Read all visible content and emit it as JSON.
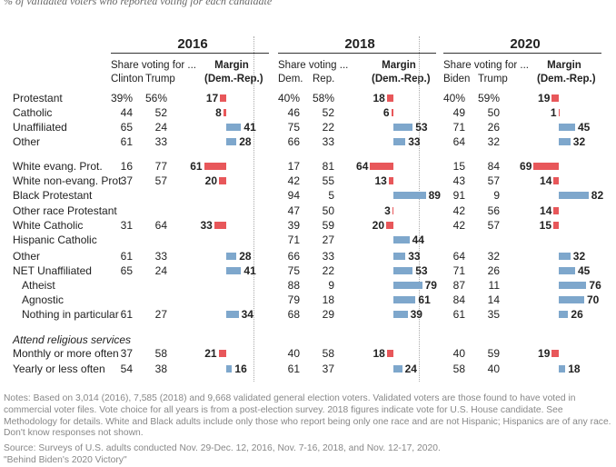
{
  "subtitle": "% of validated voters who reported voting for each candidate",
  "panels": [
    {
      "year": "2016",
      "share_label": "Share voting for ...",
      "dem_label": "Clinton",
      "rep_label": "Trump",
      "margin_label": "Margin",
      "margin_sub": "(Dem.-Rep.)"
    },
    {
      "year": "2018",
      "share_label": "Share voting ...",
      "dem_label": "Dem.",
      "rep_label": "Rep.",
      "margin_label": "Margin",
      "margin_sub": "(Dem.-Rep.)"
    },
    {
      "year": "2020",
      "share_label": "Share voting for ...",
      "dem_label": "Biden",
      "rep_label": "Trump",
      "margin_label": "Margin",
      "margin_sub": "(Dem.-Rep.)"
    }
  ],
  "section_label": "Attend religious services",
  "colors": {
    "dem": "#7ea7cc",
    "rep": "#e8575a"
  },
  "chart_data": {
    "type": "bar",
    "categories": [
      "Protestant",
      "Catholic",
      "Unaffiliated",
      "Other",
      "White evang. Prot.",
      "White non-evang. Prot.",
      "Black Protestant",
      "Other race Protestant",
      "White Catholic",
      "Hispanic Catholic",
      "Other",
      "NET Unaffiliated",
      "Atheist",
      "Agnostic",
      "Nothing in particular",
      "Monthly or more often",
      "Yearly or less often"
    ],
    "series": [
      {
        "name": "2016",
        "dem": [
          "39%",
          "44",
          "65",
          "61",
          "16",
          "37",
          "",
          "",
          "31",
          "",
          "61",
          "65",
          "",
          "",
          "61",
          "37",
          "54"
        ],
        "rep": [
          "56%",
          "52",
          "24",
          "33",
          "77",
          "57",
          "",
          "",
          "64",
          "",
          "33",
          "24",
          "",
          "",
          "27",
          "58",
          "38"
        ],
        "margin": [
          -17,
          -8,
          41,
          28,
          -61,
          -20,
          null,
          null,
          -33,
          null,
          28,
          41,
          null,
          null,
          34,
          -21,
          16
        ]
      },
      {
        "name": "2018",
        "dem": [
          "40%",
          "46",
          "75",
          "66",
          "17",
          "42",
          "94",
          "47",
          "39",
          "71",
          "66",
          "75",
          "88",
          "79",
          "68",
          "40",
          "61"
        ],
        "rep": [
          "58%",
          "52",
          "22",
          "33",
          "81",
          "55",
          "5",
          "50",
          "59",
          "27",
          "33",
          "22",
          "9",
          "18",
          "29",
          "58",
          "37"
        ],
        "margin": [
          -18,
          -6,
          53,
          33,
          -64,
          -13,
          89,
          -3,
          -20,
          44,
          33,
          53,
          79,
          61,
          39,
          -18,
          24
        ]
      },
      {
        "name": "2020",
        "dem": [
          "40%",
          "49",
          "71",
          "64",
          "15",
          "43",
          "91",
          "42",
          "42",
          "",
          "64",
          "71",
          "87",
          "84",
          "61",
          "40",
          "58"
        ],
        "rep": [
          "59%",
          "50",
          "26",
          "32",
          "84",
          "57",
          "9",
          "56",
          "57",
          "",
          "32",
          "26",
          "11",
          "14",
          "35",
          "59",
          "40"
        ],
        "margin": [
          -19,
          -1,
          45,
          32,
          -69,
          -14,
          82,
          -14,
          -15,
          null,
          32,
          45,
          76,
          70,
          26,
          -19,
          18
        ]
      }
    ]
  },
  "notes": [
    "Notes: Based on 3,014 (2016), 7,585 (2018) and 9,668 validated general election voters. Validated voters are those found to have voted in commercial voter files. Vote choice for all years is from a post-election survey. 2018 figures indicate vote for U.S. House candidate. See Methodology for details. White and Black adults include only those who report being only one race and are not Hispanic; Hispanics are of any race. Don't know responses not shown.",
    "Source: Surveys of U.S. adults conducted Nov. 29-Dec. 12, 2016, Nov. 7-16, 2018, and Nov. 12-17, 2020.",
    "\"Behind Biden's 2020 Victory\""
  ]
}
